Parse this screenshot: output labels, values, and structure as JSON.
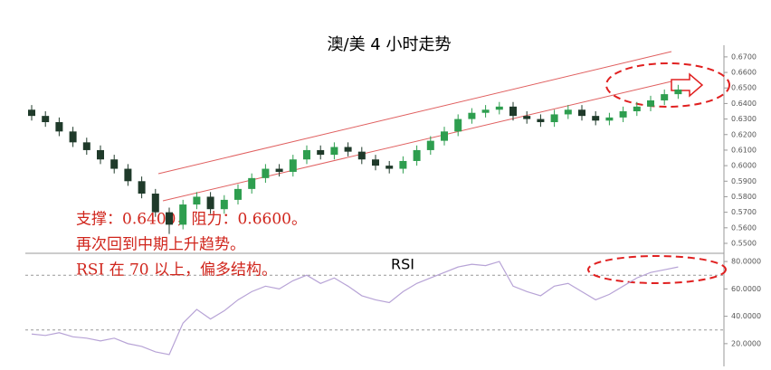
{
  "chart_data": [
    {
      "type": "candlestick",
      "title": "澳/美 4 小时走势",
      "annotations": [
        "支撑：0.6400，阻力：0.6600。",
        "再次回到中期上升趋势。",
        "RSI 在 70 以上，偏多结构。"
      ],
      "up_color": "#2e9e4f",
      "down_color": "#1f3a2a",
      "open": [
        0.636,
        0.632,
        0.628,
        0.622,
        0.615,
        0.61,
        0.604,
        0.598,
        0.59,
        0.582,
        0.57,
        0.562,
        0.575,
        0.58,
        0.572,
        0.578,
        0.585,
        0.592,
        0.598,
        0.596,
        0.604,
        0.61,
        0.607,
        0.612,
        0.609,
        0.604,
        0.6,
        0.598,
        0.603,
        0.61,
        0.616,
        0.622,
        0.63,
        0.634,
        0.636,
        0.638,
        0.632,
        0.63,
        0.628,
        0.633,
        0.636,
        0.632,
        0.629,
        0.631,
        0.635,
        0.638,
        0.642,
        0.646
      ],
      "high": [
        0.639,
        0.635,
        0.631,
        0.625,
        0.618,
        0.613,
        0.607,
        0.601,
        0.593,
        0.585,
        0.573,
        0.578,
        0.583,
        0.583,
        0.581,
        0.588,
        0.595,
        0.601,
        0.601,
        0.607,
        0.613,
        0.613,
        0.615,
        0.615,
        0.612,
        0.607,
        0.603,
        0.606,
        0.613,
        0.619,
        0.625,
        0.633,
        0.637,
        0.639,
        0.641,
        0.641,
        0.635,
        0.633,
        0.636,
        0.639,
        0.639,
        0.635,
        0.634,
        0.638,
        0.641,
        0.645,
        0.649,
        0.652
      ],
      "low": [
        0.629,
        0.625,
        0.619,
        0.612,
        0.607,
        0.601,
        0.595,
        0.587,
        0.579,
        0.567,
        0.556,
        0.559,
        0.572,
        0.569,
        0.569,
        0.575,
        0.582,
        0.589,
        0.593,
        0.593,
        0.601,
        0.604,
        0.604,
        0.606,
        0.601,
        0.597,
        0.595,
        0.595,
        0.6,
        0.607,
        0.613,
        0.619,
        0.627,
        0.631,
        0.633,
        0.629,
        0.627,
        0.625,
        0.625,
        0.63,
        0.629,
        0.626,
        0.626,
        0.628,
        0.632,
        0.635,
        0.639,
        0.643
      ],
      "close": [
        0.632,
        0.628,
        0.622,
        0.615,
        0.61,
        0.604,
        0.598,
        0.59,
        0.582,
        0.57,
        0.562,
        0.575,
        0.58,
        0.572,
        0.578,
        0.585,
        0.592,
        0.598,
        0.596,
        0.604,
        0.61,
        0.607,
        0.612,
        0.609,
        0.604,
        0.6,
        0.598,
        0.603,
        0.61,
        0.616,
        0.622,
        0.63,
        0.634,
        0.636,
        0.638,
        0.632,
        0.63,
        0.628,
        0.633,
        0.636,
        0.632,
        0.629,
        0.631,
        0.635,
        0.638,
        0.642,
        0.646,
        0.649
      ],
      "ylim": [
        0.5465,
        0.6775
      ],
      "yticks": [
        {
          "value": 0.67,
          "label": "0.6700"
        },
        {
          "value": 0.66,
          "label": "0.6600"
        },
        {
          "value": 0.65,
          "label": "0.6500"
        },
        {
          "value": 0.64,
          "label": "0.6400"
        },
        {
          "value": 0.63,
          "label": "0.6300"
        },
        {
          "value": 0.62,
          "label": "0.6200"
        },
        {
          "value": 0.61,
          "label": "0.6100"
        },
        {
          "value": 0.6,
          "label": "0.6000"
        },
        {
          "value": 0.59,
          "label": "0.5900"
        },
        {
          "value": 0.58,
          "label": "0.5800"
        },
        {
          "value": 0.57,
          "label": "0.5700"
        },
        {
          "value": 0.56,
          "label": "0.5600"
        },
        {
          "value": 0.55,
          "label": "0.5500"
        }
      ]
    },
    {
      "type": "line",
      "title": "RSI",
      "series": [
        {
          "color": "#b7a3d6",
          "values": [
            27,
            26,
            28,
            25,
            24,
            22,
            24,
            20,
            18,
            14,
            12,
            35,
            45,
            38,
            44,
            52,
            58,
            62,
            60,
            66,
            70,
            64,
            68,
            62,
            55,
            52,
            50,
            58,
            64,
            68,
            72,
            76,
            78,
            77,
            80,
            62,
            58,
            55,
            62,
            64,
            58,
            52,
            56,
            62,
            68,
            72,
            74,
            76
          ]
        }
      ],
      "reference_lines": [
        70,
        30
      ],
      "ylim": [
        10,
        86
      ],
      "yticks": [
        {
          "value": 80,
          "label": "80.0000"
        },
        {
          "value": 60,
          "label": "60.0000"
        },
        {
          "value": 40,
          "label": "40.0000"
        },
        {
          "value": 20,
          "label": "20.0000"
        }
      ]
    }
  ]
}
